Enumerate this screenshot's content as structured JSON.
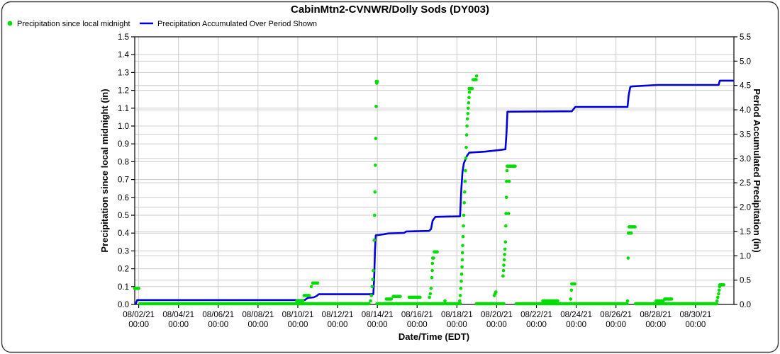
{
  "title": "CabinMtn2-CVNWR/Dolly Sods (DY003)",
  "colors": {
    "green_series": "#00dd00",
    "blue_series": "#0000dd",
    "grid": "#cccccc",
    "axis": "#000000",
    "border": "#3a3a3a",
    "background": "#ffffff"
  },
  "legend": {
    "items": [
      {
        "label": "Precipitation since local midnight",
        "symbol": "dot",
        "color": "#00dd00"
      },
      {
        "label": "Precipitation Accumulated Over Period Shown",
        "symbol": "line",
        "color": "#0000dd"
      }
    ]
  },
  "chart_data": {
    "type": "scatter",
    "title": "CabinMtn2-CVNWR/Dolly Sods (DY003)",
    "grid": true,
    "legend_position": "top-left",
    "x_axis": {
      "label": "Date/Time (EDT)",
      "unit": "day-of-august-2021",
      "range": [
        1.8,
        31.93
      ],
      "ticks": [
        {
          "day": 2,
          "date": "08/02/21",
          "time": "00:00"
        },
        {
          "day": 4,
          "date": "08/04/21",
          "time": "00:00"
        },
        {
          "day": 6,
          "date": "08/06/21",
          "time": "00:00"
        },
        {
          "day": 8,
          "date": "08/08/21",
          "time": "00:00"
        },
        {
          "day": 10,
          "date": "08/10/21",
          "time": "00:00"
        },
        {
          "day": 12,
          "date": "08/12/21",
          "time": "00:00"
        },
        {
          "day": 14,
          "date": "08/14/21",
          "time": "00:00"
        },
        {
          "day": 16,
          "date": "08/16/21",
          "time": "00:00"
        },
        {
          "day": 18,
          "date": "08/18/21",
          "time": "00:00"
        },
        {
          "day": 20,
          "date": "08/20/21",
          "time": "00:00"
        },
        {
          "day": 22,
          "date": "08/22/21",
          "time": "00:00"
        },
        {
          "day": 24,
          "date": "08/24/21",
          "time": "00:00"
        },
        {
          "day": 26,
          "date": "08/26/21",
          "time": "00:00"
        },
        {
          "day": 28,
          "date": "08/28/21",
          "time": "00:00"
        },
        {
          "day": 30,
          "date": "08/30/21",
          "time": "00:00"
        }
      ]
    },
    "y_left": {
      "label": "Precipitation since local midnight (in)",
      "range": [
        0,
        1.5
      ],
      "tick_step": 0.1,
      "ticks": [
        "0.0",
        "0.1",
        "0.2",
        "0.3",
        "0.4",
        "0.5",
        "0.6",
        "0.7",
        "0.8",
        "0.9",
        "1.0",
        "1.1",
        "1.2",
        "1.3",
        "1.4",
        "1.5"
      ]
    },
    "y_right": {
      "label": "Period Accumulated Precipitation (in)",
      "range": [
        0,
        5.5
      ],
      "tick_step": 0.5,
      "ticks": [
        "0.0",
        "0.5",
        "1.0",
        "1.5",
        "2.0",
        "2.5",
        "3.0",
        "3.5",
        "4.0",
        "4.5",
        "5.0",
        "5.5"
      ]
    },
    "series": [
      {
        "name": "Precipitation since local midnight",
        "type": "scatter",
        "axis": "left",
        "color": "#00dd00",
        "zero_runs": [
          [
            2.06,
            13.6
          ],
          [
            13.98,
            18.22
          ],
          [
            18.98,
            20.36
          ],
          [
            20.98,
            26.58
          ],
          [
            26.98,
            31.1
          ]
        ],
        "runs": [
          [
            1.8,
            2.04,
            0.09
          ],
          [
            9.95,
            10.3,
            0.02
          ],
          [
            10.32,
            10.62,
            0.05
          ],
          [
            10.75,
            11.02,
            0.12
          ],
          [
            13.95,
            14.02,
            1.25
          ],
          [
            14.45,
            14.75,
            0.03
          ],
          [
            14.8,
            15.2,
            0.045
          ],
          [
            15.6,
            16.2,
            0.04
          ],
          [
            16.78,
            16.88,
            0.26
          ],
          [
            16.86,
            17.02,
            0.295
          ],
          [
            18.62,
            18.8,
            1.21
          ],
          [
            18.82,
            19.0,
            1.26
          ],
          [
            20.53,
            20.98,
            0.775
          ],
          [
            22.32,
            23.12,
            0.02
          ],
          [
            23.78,
            23.98,
            0.115
          ],
          [
            26.62,
            26.78,
            0.4
          ],
          [
            26.66,
            26.98,
            0.435
          ],
          [
            28.02,
            28.4,
            0.02
          ],
          [
            28.45,
            28.85,
            0.03
          ],
          [
            31.22,
            31.44,
            0.11
          ]
        ],
        "points": [
          [
            10.68,
            0.1
          ],
          [
            13.66,
            0.02
          ],
          [
            13.7,
            0.05
          ],
          [
            13.74,
            0.1
          ],
          [
            13.77,
            0.14
          ],
          [
            13.8,
            0.19
          ],
          [
            13.84,
            0.36
          ],
          [
            13.86,
            0.5
          ],
          [
            13.88,
            0.63
          ],
          [
            13.9,
            0.78
          ],
          [
            13.92,
            0.93
          ],
          [
            13.94,
            1.11
          ],
          [
            13.97,
            1.24
          ],
          [
            16.62,
            0.04
          ],
          [
            16.66,
            0.06
          ],
          [
            16.7,
            0.09
          ],
          [
            16.74,
            0.15
          ],
          [
            16.76,
            0.19
          ],
          [
            16.77,
            0.23
          ],
          [
            17.4,
            0.02
          ],
          [
            18.14,
            0.02
          ],
          [
            18.17,
            0.05
          ],
          [
            18.2,
            0.09
          ],
          [
            18.22,
            0.13
          ],
          [
            18.24,
            0.17
          ],
          [
            18.26,
            0.21
          ],
          [
            18.27,
            0.25
          ],
          [
            18.28,
            0.29
          ],
          [
            18.29,
            0.33
          ],
          [
            18.31,
            0.38
          ],
          [
            18.33,
            0.44
          ],
          [
            18.35,
            0.5
          ],
          [
            18.37,
            0.57
          ],
          [
            18.39,
            0.63
          ],
          [
            18.41,
            0.69
          ],
          [
            18.43,
            0.75
          ],
          [
            18.45,
            0.82
          ],
          [
            18.47,
            0.88
          ],
          [
            18.49,
            0.95
          ],
          [
            18.51,
            1.0
          ],
          [
            18.53,
            1.04
          ],
          [
            18.55,
            1.07
          ],
          [
            18.57,
            1.1
          ],
          [
            18.59,
            1.13
          ],
          [
            18.61,
            1.16
          ],
          [
            18.63,
            1.19
          ],
          [
            18.99,
            1.28
          ],
          [
            19.88,
            0.05
          ],
          [
            19.92,
            0.06
          ],
          [
            19.96,
            0.07
          ],
          [
            20.32,
            0.16
          ],
          [
            20.34,
            0.19
          ],
          [
            20.36,
            0.22
          ],
          [
            20.38,
            0.25
          ],
          [
            20.4,
            0.28
          ],
          [
            20.42,
            0.31
          ],
          [
            20.44,
            0.35
          ],
          [
            20.46,
            0.44
          ],
          [
            20.47,
            0.51
          ],
          [
            20.49,
            0.6
          ],
          [
            20.5,
            0.69
          ],
          [
            20.52,
            0.75
          ],
          [
            20.6,
            0.51
          ],
          [
            20.63,
            0.69
          ],
          [
            23.72,
            0.03
          ],
          [
            23.76,
            0.08
          ],
          [
            26.58,
            0.02
          ],
          [
            26.61,
            0.26
          ],
          [
            31.08,
            0.02
          ],
          [
            31.12,
            0.04
          ],
          [
            31.16,
            0.06
          ],
          [
            31.19,
            0.08
          ],
          [
            31.21,
            0.1
          ]
        ]
      },
      {
        "name": "Precipitation Accumulated Over Period Shown",
        "type": "line",
        "axis": "right",
        "color": "#0000dd",
        "points": [
          [
            1.8,
            0.0
          ],
          [
            1.86,
            0.02
          ],
          [
            1.92,
            0.09
          ],
          [
            10.35,
            0.09
          ],
          [
            10.42,
            0.11
          ],
          [
            10.5,
            0.135
          ],
          [
            10.8,
            0.145
          ],
          [
            10.95,
            0.175
          ],
          [
            11.05,
            0.21
          ],
          [
            13.8,
            0.21
          ],
          [
            13.84,
            0.55
          ],
          [
            13.88,
            1.1
          ],
          [
            13.92,
            1.42
          ],
          [
            14.3,
            1.44
          ],
          [
            14.55,
            1.46
          ],
          [
            15.35,
            1.47
          ],
          [
            15.45,
            1.5
          ],
          [
            16.6,
            1.51
          ],
          [
            16.7,
            1.55
          ],
          [
            16.78,
            1.72
          ],
          [
            16.92,
            1.8
          ],
          [
            18.16,
            1.81
          ],
          [
            18.22,
            2.35
          ],
          [
            18.28,
            2.72
          ],
          [
            18.35,
            2.9
          ],
          [
            18.5,
            3.05
          ],
          [
            18.62,
            3.12
          ],
          [
            19.4,
            3.14
          ],
          [
            20.1,
            3.17
          ],
          [
            20.44,
            3.19
          ],
          [
            20.5,
            3.55
          ],
          [
            20.54,
            3.96
          ],
          [
            23.78,
            3.97
          ],
          [
            23.88,
            4.02
          ],
          [
            23.96,
            4.06
          ],
          [
            26.58,
            4.06
          ],
          [
            26.64,
            4.3
          ],
          [
            26.72,
            4.47
          ],
          [
            26.8,
            4.48
          ],
          [
            28.1,
            4.51
          ],
          [
            31.16,
            4.51
          ],
          [
            31.22,
            4.6
          ],
          [
            31.93,
            4.6
          ]
        ]
      }
    ]
  }
}
